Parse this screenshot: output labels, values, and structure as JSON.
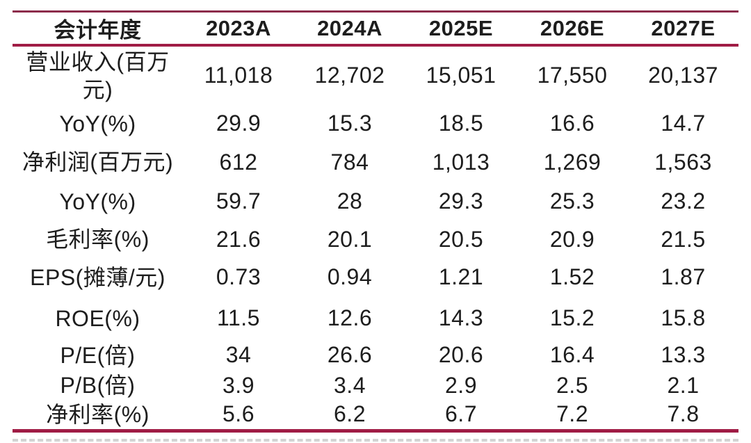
{
  "colors": {
    "accent_line": "#A01C45",
    "top_line": "#8C2B4B",
    "text": "#1d1d1d"
  },
  "chart_data": {
    "type": "table",
    "columns": [
      "会计年度",
      "2023A",
      "2024A",
      "2025E",
      "2026E",
      "2027E"
    ],
    "rows": [
      {
        "label": "营业收入(百万\n元)",
        "values": [
          "11,018",
          "12,702",
          "15,051",
          "17,550",
          "20,137"
        ]
      },
      {
        "label": "YoY(%)",
        "values": [
          "29.9",
          "15.3",
          "18.5",
          "16.6",
          "14.7"
        ]
      },
      {
        "label": "净利润(百万元)",
        "values": [
          "612",
          "784",
          "1,013",
          "1,269",
          "1,563"
        ]
      },
      {
        "label": "YoY(%)",
        "values": [
          "59.7",
          "28",
          "29.3",
          "25.3",
          "23.2"
        ]
      },
      {
        "label": "毛利率(%)",
        "values": [
          "21.6",
          "20.1",
          "20.5",
          "20.9",
          "21.5"
        ]
      },
      {
        "label": "EPS(摊薄/元)",
        "values": [
          "0.73",
          "0.94",
          "1.21",
          "1.52",
          "1.87"
        ]
      },
      {
        "label": "ROE(%)",
        "values": [
          "11.5",
          "12.6",
          "14.3",
          "15.2",
          "15.8"
        ]
      },
      {
        "label": "P/E(倍)",
        "values": [
          "34",
          "26.6",
          "20.6",
          "16.4",
          "13.3"
        ]
      },
      {
        "label": "P/B(倍)",
        "values": [
          "3.9",
          "3.4",
          "2.9",
          "2.5",
          "2.1"
        ]
      },
      {
        "label": "净利率(%)",
        "values": [
          "5.6",
          "6.2",
          "6.7",
          "7.2",
          "7.8"
        ]
      }
    ]
  }
}
